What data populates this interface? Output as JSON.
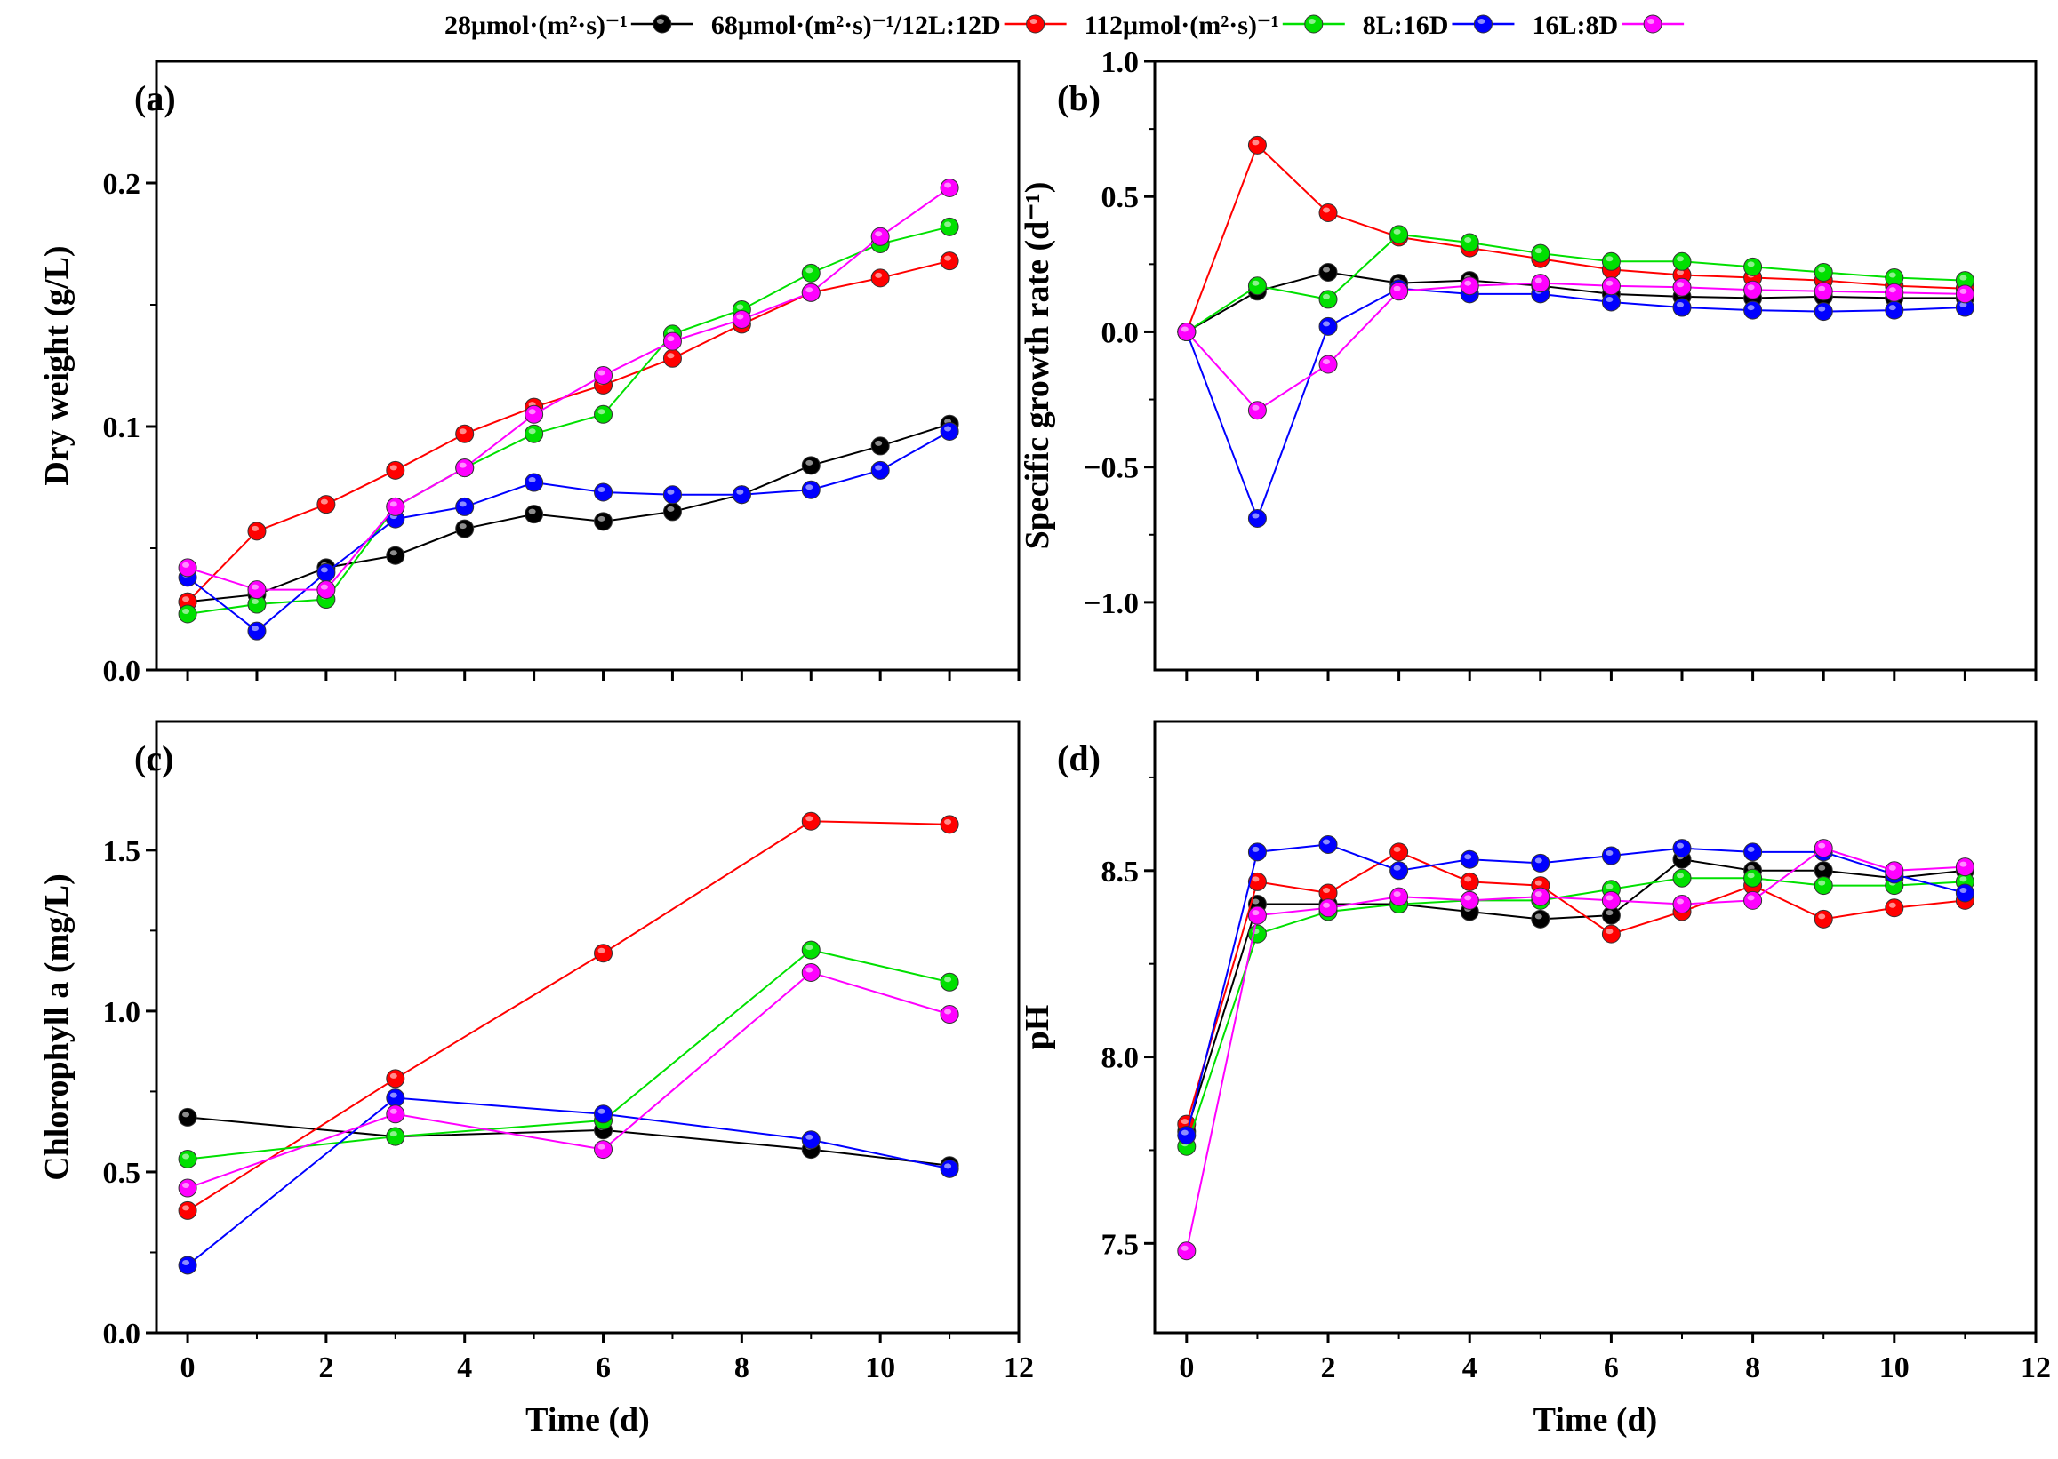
{
  "legend": [
    {
      "label": "28μmol·(m²·s)⁻¹",
      "color": "#000000"
    },
    {
      "label": "68μmol·(m²·s)⁻¹/12L:12D",
      "color": "#ff0000"
    },
    {
      "label": "112μmol·(m²·s)⁻¹",
      "color": "#00e000"
    },
    {
      "label": "8L:16D",
      "color": "#0000ff"
    },
    {
      "label": "16L:8D",
      "color": "#ff00ff"
    }
  ],
  "chart_data": [
    {
      "type": "line",
      "panel": "(a)",
      "ylabel": "Dry weight (g/L)",
      "xlabel": "",
      "xlim": [
        -0.45,
        12
      ],
      "ylim": [
        0,
        0.25
      ],
      "yticks": [
        "0.0",
        "0.1",
        "0.2"
      ],
      "ytick_values": [
        0,
        0.1,
        0.2
      ],
      "yminor": [
        0.05,
        0.15
      ],
      "xticks": [
        0,
        1,
        2,
        3,
        4,
        5,
        6,
        7,
        8,
        9,
        10,
        11,
        12
      ],
      "xtick_labels_shown": false,
      "x": [
        0,
        1,
        2,
        3,
        4,
        5,
        6,
        7,
        8,
        9,
        10,
        11
      ],
      "series": [
        {
          "name": "28μmol·(m²·s)⁻¹",
          "values": [
            0.028,
            0.031,
            0.042,
            0.047,
            0.058,
            0.064,
            0.061,
            0.065,
            0.072,
            0.084,
            0.092,
            0.101
          ]
        },
        {
          "name": "68μmol·(m²·s)⁻¹/12L:12D",
          "values": [
            0.028,
            0.057,
            0.068,
            0.082,
            0.097,
            0.108,
            0.117,
            0.128,
            0.142,
            0.155,
            0.161,
            0.168
          ]
        },
        {
          "name": "112μmol·(m²·s)⁻¹",
          "values": [
            0.023,
            0.027,
            0.029,
            0.067,
            0.083,
            0.097,
            0.105,
            0.138,
            0.148,
            0.163,
            0.175,
            0.182
          ]
        },
        {
          "name": "8L:16D",
          "values": [
            0.038,
            0.016,
            0.04,
            0.062,
            0.067,
            0.077,
            0.073,
            0.072,
            0.072,
            0.074,
            0.082,
            0.098
          ]
        },
        {
          "name": "16L:8D",
          "values": [
            0.042,
            0.033,
            0.033,
            0.067,
            0.083,
            0.105,
            0.121,
            0.135,
            0.144,
            0.155,
            0.178,
            0.198
          ]
        }
      ]
    },
    {
      "type": "line",
      "panel": "(b)",
      "ylabel": "Specific growth rate (d⁻¹)",
      "xlabel": "",
      "xlim": [
        -0.45,
        12
      ],
      "ylim": [
        -1.25,
        1.0
      ],
      "yticks": [
        "−1.0",
        "−0.5",
        "0.0",
        "0.5",
        "1.0"
      ],
      "ytick_values": [
        -1,
        -0.5,
        0,
        0.5,
        1
      ],
      "yminor": [
        -0.75,
        -0.25,
        0.25,
        0.75
      ],
      "xticks": [
        0,
        1,
        2,
        3,
        4,
        5,
        6,
        7,
        8,
        9,
        10,
        11,
        12
      ],
      "xtick_labels_shown": false,
      "x": [
        0,
        1,
        2,
        3,
        4,
        5,
        6,
        7,
        8,
        9,
        10,
        11
      ],
      "series": [
        {
          "name": "28μmol·(m²·s)⁻¹",
          "values": [
            0,
            0.15,
            0.22,
            0.18,
            0.19,
            0.17,
            0.14,
            0.13,
            0.125,
            0.13,
            0.125,
            0.125
          ]
        },
        {
          "name": "68μmol·(m²·s)⁻¹/12L:12D",
          "values": [
            0,
            0.69,
            0.44,
            0.35,
            0.31,
            0.27,
            0.23,
            0.21,
            0.2,
            0.19,
            0.17,
            0.16
          ]
        },
        {
          "name": "112μmol·(m²·s)⁻¹",
          "values": [
            0,
            0.17,
            0.12,
            0.36,
            0.33,
            0.29,
            0.26,
            0.26,
            0.24,
            0.22,
            0.2,
            0.19
          ]
        },
        {
          "name": "8L:16D",
          "values": [
            0,
            -0.69,
            0.02,
            0.16,
            0.14,
            0.14,
            0.11,
            0.09,
            0.08,
            0.075,
            0.08,
            0.09
          ]
        },
        {
          "name": "16L:8D",
          "values": [
            0,
            -0.29,
            -0.12,
            0.15,
            0.17,
            0.18,
            0.17,
            0.165,
            0.155,
            0.15,
            0.145,
            0.14
          ]
        }
      ]
    },
    {
      "type": "line",
      "panel": "(c)",
      "ylabel": "Chlorophyll a (mg/L)",
      "xlabel": "Time (d)",
      "xlim": [
        -0.45,
        12
      ],
      "ylim": [
        0,
        1.9
      ],
      "yticks": [
        "0.0",
        "0.5",
        "1.0",
        "1.5"
      ],
      "ytick_values": [
        0,
        0.5,
        1,
        1.5
      ],
      "yminor": [
        0.25,
        0.75,
        1.25,
        1.75
      ],
      "xticks": [
        0,
        2,
        4,
        6,
        8,
        10,
        12
      ],
      "xtick_labels": [
        "0",
        "2",
        "4",
        "6",
        "8",
        "10",
        "12"
      ],
      "xtick_labels_shown": true,
      "x": [
        0,
        3,
        6,
        9,
        11
      ],
      "series": [
        {
          "name": "28μmol·(m²·s)⁻¹",
          "values": [
            0.67,
            0.61,
            0.63,
            0.57,
            0.52
          ]
        },
        {
          "name": "68μmol·(m²·s)⁻¹/12L:12D",
          "values": [
            0.38,
            0.79,
            1.18,
            1.59,
            1.58
          ]
        },
        {
          "name": "112μmol·(m²·s)⁻¹",
          "values": [
            0.54,
            0.61,
            0.66,
            1.19,
            1.09
          ]
        },
        {
          "name": "8L:16D",
          "values": [
            0.21,
            0.73,
            0.68,
            0.6,
            0.51
          ]
        },
        {
          "name": "16L:8D",
          "values": [
            0.45,
            0.68,
            0.57,
            1.12,
            0.99
          ]
        }
      ]
    },
    {
      "type": "line",
      "panel": "(d)",
      "ylabel": "pH",
      "xlabel": "Time (d)",
      "xlim": [
        -0.45,
        12
      ],
      "ylim": [
        7.26,
        8.9
      ],
      "yticks": [
        "7.5",
        "8.0",
        "8.5"
      ],
      "ytick_values": [
        7.5,
        8.0,
        8.5
      ],
      "yminor": [
        7.75,
        8.25,
        8.75
      ],
      "xticks": [
        0,
        2,
        4,
        6,
        8,
        10,
        12
      ],
      "xtick_labels": [
        "0",
        "2",
        "4",
        "6",
        "8",
        "10",
        "12"
      ],
      "xtick_labels_shown": true,
      "x": [
        0,
        1,
        2,
        3,
        4,
        5,
        6,
        7,
        8,
        9,
        10,
        11
      ],
      "series": [
        {
          "name": "28μmol·(m²·s)⁻¹",
          "values": [
            7.8,
            8.41,
            8.41,
            8.41,
            8.39,
            8.37,
            8.38,
            8.53,
            8.5,
            8.5,
            8.48,
            8.5
          ]
        },
        {
          "name": "68μmol·(m²·s)⁻¹/12L:12D",
          "values": [
            7.82,
            8.47,
            8.44,
            8.55,
            8.47,
            8.46,
            8.33,
            8.39,
            8.46,
            8.37,
            8.4,
            8.42
          ]
        },
        {
          "name": "112μmol·(m²·s)⁻¹",
          "values": [
            7.76,
            8.33,
            8.39,
            8.41,
            8.42,
            8.42,
            8.45,
            8.48,
            8.48,
            8.46,
            8.46,
            8.47
          ]
        },
        {
          "name": "8L:16D",
          "values": [
            7.79,
            8.55,
            8.57,
            8.5,
            8.53,
            8.52,
            8.54,
            8.56,
            8.55,
            8.55,
            8.49,
            8.44
          ]
        },
        {
          "name": "16L:8D",
          "values": [
            7.48,
            8.38,
            8.4,
            8.43,
            8.42,
            8.43,
            8.42,
            8.41,
            8.42,
            8.56,
            8.5,
            8.51
          ]
        }
      ]
    }
  ]
}
